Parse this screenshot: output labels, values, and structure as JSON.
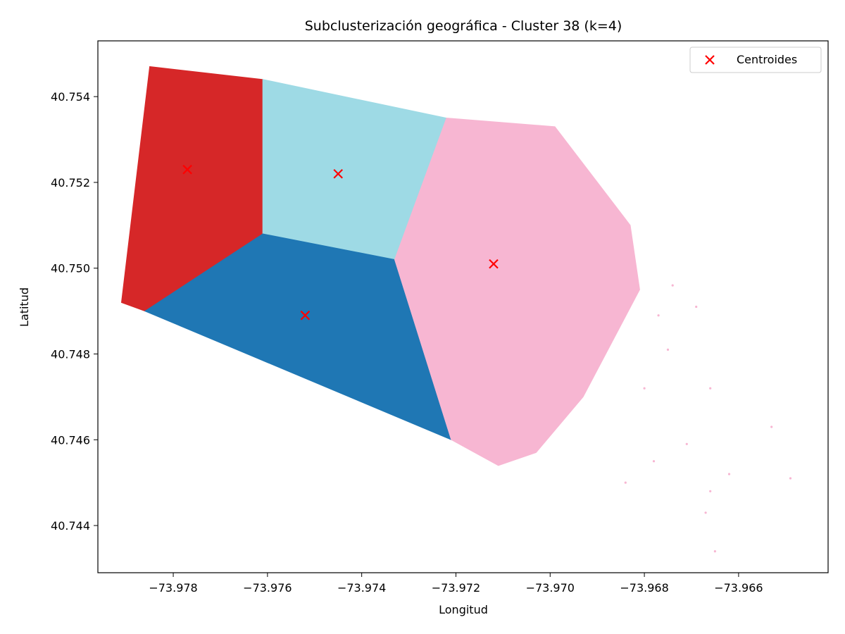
{
  "chart_data": {
    "type": "scatter",
    "title": "Subclusterización geográfica - Cluster 38 (k=4)",
    "xlabel": "Longitud",
    "ylabel": "Latitud",
    "xlim": [
      -73.9796,
      -73.9641
    ],
    "ylim": [
      40.7429,
      40.7553
    ],
    "xticks": [
      -73.978,
      -73.976,
      -73.974,
      -73.972,
      -73.97,
      -73.968,
      -73.966
    ],
    "xtick_labels": [
      "−73.978",
      "−73.976",
      "−73.974",
      "−73.972",
      "−73.970",
      "−73.968",
      "−73.966"
    ],
    "yticks": [
      40.744,
      40.746,
      40.748,
      40.75,
      40.752,
      40.754
    ],
    "ytick_labels": [
      "40.744",
      "40.746",
      "40.748",
      "40.750",
      "40.752",
      "40.754"
    ],
    "grid": false,
    "legend_position": "top-right",
    "legend_label": "Centroides",
    "marker_color": "#ff0000",
    "clusters": [
      {
        "color": "#d62728",
        "region": [
          [
            -73.9785,
            40.7547
          ],
          [
            -73.9761,
            40.7544
          ],
          [
            -73.9761,
            40.7508
          ],
          [
            -73.9786,
            40.749
          ],
          [
            -73.9791,
            40.7492
          ]
        ]
      },
      {
        "color": "#9edae5",
        "region": [
          [
            -73.9761,
            40.7544
          ],
          [
            -73.9722,
            40.7535
          ],
          [
            -73.9733,
            40.7502
          ],
          [
            -73.9761,
            40.7508
          ]
        ]
      },
      {
        "color": "#1f77b4",
        "region": [
          [
            -73.9761,
            40.7508
          ],
          [
            -73.9733,
            40.7502
          ],
          [
            -73.9721,
            40.746
          ],
          [
            -73.9786,
            40.749
          ]
        ]
      },
      {
        "color": "#f7b6d2",
        "region": [
          [
            -73.9722,
            40.7535
          ],
          [
            -73.9699,
            40.7533
          ],
          [
            -73.9683,
            40.751
          ],
          [
            -73.9681,
            40.7495
          ],
          [
            -73.9693,
            40.747
          ],
          [
            -73.9703,
            40.7457
          ],
          [
            -73.9711,
            40.7454
          ],
          [
            -73.9721,
            40.746
          ],
          [
            -73.9733,
            40.7502
          ]
        ]
      }
    ],
    "outliers": [
      [
        -73.9677,
        40.7489
      ],
      [
        -73.9666,
        40.7472
      ],
      [
        -73.9653,
        40.7463
      ],
      [
        -73.9649,
        40.7451
      ],
      [
        -73.9667,
        40.7443
      ],
      [
        -73.9665,
        40.7434
      ],
      [
        -73.9671,
        40.7459
      ],
      [
        -73.9678,
        40.7455
      ],
      [
        -73.9662,
        40.7452
      ],
      [
        -73.9666,
        40.7448
      ],
      [
        -73.9675,
        40.7481
      ],
      [
        -73.9669,
        40.7491
      ],
      [
        -73.9684,
        40.745
      ],
      [
        -73.968,
        40.7472
      ],
      [
        -73.9674,
        40.7496
      ]
    ],
    "centroids": [
      {
        "x": -73.9777,
        "y": 40.7523
      },
      {
        "x": -73.9745,
        "y": 40.7522
      },
      {
        "x": -73.9752,
        "y": 40.7489
      },
      {
        "x": -73.9712,
        "y": 40.7501
      }
    ]
  }
}
